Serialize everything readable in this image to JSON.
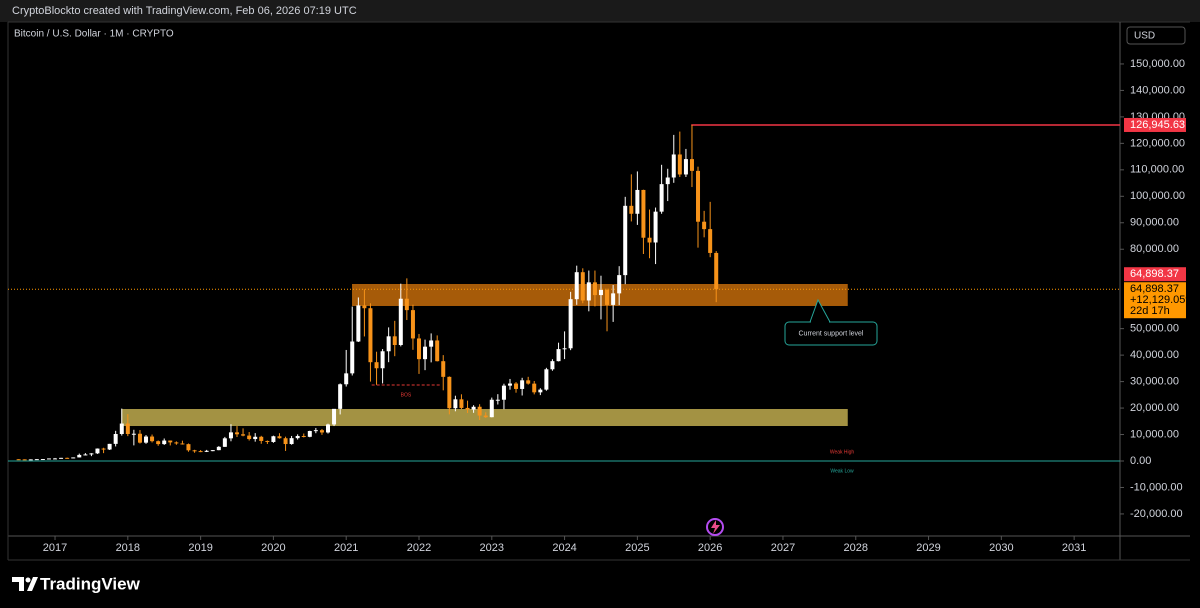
{
  "header": {
    "credit": "CryptoBlockto created with TradingView.com, Feb 06, 2026 07:19 UTC",
    "brand": "TradingView"
  },
  "chart_data": {
    "type": "candlestick",
    "title": "Bitcoin / U.S. Dollar · 1M · CRYPTO",
    "currency": "USD",
    "up_color": "#ffffff",
    "down_color": "#f7931a",
    "x": [
      2016.5,
      2016.583,
      2016.667,
      2016.75,
      2016.833,
      2016.917,
      2017.0,
      2017.083,
      2017.167,
      2017.25,
      2017.333,
      2017.417,
      2017.5,
      2017.583,
      2017.667,
      2017.75,
      2017.833,
      2017.917,
      2018.0,
      2018.083,
      2018.167,
      2018.25,
      2018.333,
      2018.417,
      2018.5,
      2018.583,
      2018.667,
      2018.75,
      2018.833,
      2018.917,
      2019.0,
      2019.083,
      2019.167,
      2019.25,
      2019.333,
      2019.417,
      2019.5,
      2019.583,
      2019.667,
      2019.75,
      2019.833,
      2019.917,
      2020.0,
      2020.083,
      2020.167,
      2020.25,
      2020.333,
      2020.417,
      2020.5,
      2020.583,
      2020.667,
      2020.75,
      2020.833,
      2020.917,
      2021.0,
      2021.083,
      2021.167,
      2021.25,
      2021.333,
      2021.417,
      2021.5,
      2021.583,
      2021.667,
      2021.75,
      2021.833,
      2021.917,
      2022.0,
      2022.083,
      2022.167,
      2022.25,
      2022.333,
      2022.417,
      2022.5,
      2022.583,
      2022.667,
      2022.75,
      2022.833,
      2022.917,
      2023.0,
      2023.083,
      2023.167,
      2023.25,
      2023.333,
      2023.417,
      2023.5,
      2023.583,
      2023.667,
      2023.75,
      2023.833,
      2023.917,
      2024.0,
      2024.083,
      2024.167,
      2024.25,
      2024.333,
      2024.417,
      2024.5,
      2024.583,
      2024.667,
      2024.75,
      2024.833,
      2024.917,
      2025.0,
      2025.083,
      2025.167,
      2025.25,
      2025.333,
      2025.417,
      2025.5,
      2025.583,
      2025.667,
      2025.75,
      2025.833,
      2025.917,
      2026.0,
      2026.083
    ],
    "open": [
      673,
      624,
      575,
      609,
      700,
      745,
      964,
      970,
      1190,
      1080,
      1350,
      2300,
      2480,
      2880,
      4700,
      4340,
      6470,
      10200,
      14150,
      10200,
      10300,
      6930,
      9240,
      7490,
      6390,
      7730,
      7030,
      6630,
      6370,
      4040,
      3740,
      3460,
      3850,
      4100,
      5350,
      8570,
      10820,
      10090,
      9600,
      8290,
      9150,
      7570,
      7190,
      9350,
      8600,
      6410,
      8630,
      9450,
      9140,
      11330,
      11650,
      10780,
      13800,
      19700,
      28990,
      33110,
      45140,
      58790,
      57720,
      37330,
      35040,
      41460,
      47100,
      43820,
      61300,
      57000,
      46300,
      38480,
      43190,
      45540,
      37710,
      31790,
      19940,
      23300,
      20050,
      19430,
      20490,
      17170,
      16550,
      23140,
      23150,
      28470,
      29270,
      27220,
      30480,
      29230,
      25940,
      26970,
      34650,
      37720,
      42280,
      42580,
      61130,
      71330,
      60640,
      67490,
      62680,
      64620,
      58970,
      63330,
      70220,
      96400,
      93400,
      102400,
      84350,
      82550,
      94200,
      104600,
      107100,
      115800,
      108250,
      114050,
      109600,
      90400,
      87600,
      78600
    ],
    "high": [
      704,
      626,
      628,
      720,
      755,
      980,
      1150,
      1200,
      1290,
      1350,
      2790,
      3000,
      2950,
      4750,
      5000,
      6470,
      11400,
      19800,
      17700,
      11800,
      11700,
      9800,
      10000,
      7760,
      8500,
      7760,
      7410,
      7680,
      6620,
      4240,
      4140,
      4200,
      4150,
      5620,
      9100,
      13900,
      13200,
      12330,
      10940,
      10540,
      9510,
      7750,
      9580,
      10500,
      9190,
      9460,
      10070,
      10380,
      11450,
      12480,
      12100,
      14100,
      19500,
      29300,
      41950,
      58350,
      61790,
      64850,
      59580,
      41290,
      42300,
      50480,
      52950,
      67000,
      69000,
      59050,
      47990,
      45850,
      48200,
      47450,
      40000,
      31950,
      24670,
      25200,
      22800,
      21080,
      21450,
      18390,
      23960,
      25250,
      29200,
      31000,
      29820,
      31430,
      31800,
      30230,
      27500,
      35200,
      38450,
      44700,
      48970,
      63900,
      73800,
      72800,
      71950,
      71950,
      70000,
      65100,
      66500,
      73600,
      99800,
      108300,
      109400,
      102500,
      95000,
      95750,
      111900,
      110400,
      123200,
      124450,
      117900,
      126945.63,
      111200,
      94500,
      97900,
      79300
    ],
    "low": [
      605,
      530,
      570,
      605,
      680,
      740,
      750,
      920,
      890,
      1060,
      1340,
      2200,
      1840,
      2670,
      2970,
      4150,
      5500,
      9600,
      9400,
      5900,
      6600,
      6500,
      7000,
      5750,
      6070,
      5880,
      6130,
      6200,
      3500,
      3120,
      3350,
      3390,
      3720,
      4070,
      5330,
      7450,
      9060,
      9330,
      7730,
      7300,
      6510,
      6430,
      6870,
      8450,
      3800,
      6160,
      8100,
      8900,
      8970,
      10500,
      9880,
      10370,
      13200,
      17600,
      28130,
      32300,
      44950,
      47050,
      30000,
      28800,
      29300,
      37330,
      39600,
      43300,
      53250,
      42000,
      32900,
      34320,
      37260,
      37600,
      26700,
      17620,
      18780,
      19600,
      18150,
      18200,
      15480,
      16260,
      16500,
      21350,
      19550,
      26950,
      25800,
      24750,
      28850,
      25170,
      24900,
      26550,
      34100,
      37630,
      38500,
      41880,
      59000,
      59600,
      56550,
      58400,
      53500,
      49000,
      52550,
      58900,
      66800,
      90500,
      89200,
      78200,
      76600,
      74400,
      93400,
      98200,
      105100,
      107300,
      107300,
      103500,
      80600,
      84500,
      77000,
      60000
    ],
    "close": [
      624,
      575,
      609,
      700,
      745,
      964,
      970,
      1190,
      1080,
      1350,
      2300,
      2480,
      2880,
      4700,
      4340,
      6470,
      10200,
      14150,
      10200,
      10300,
      6930,
      9240,
      7490,
      6390,
      7730,
      7030,
      6630,
      6370,
      4040,
      3740,
      3460,
      3850,
      4100,
      5350,
      8570,
      10820,
      10090,
      9600,
      8290,
      9150,
      7570,
      7190,
      9350,
      8600,
      6410,
      8630,
      9450,
      9140,
      11330,
      11650,
      10780,
      13800,
      19700,
      28990,
      33110,
      45140,
      58790,
      57720,
      37330,
      35040,
      41460,
      47100,
      43820,
      61300,
      57000,
      46300,
      38480,
      43190,
      45540,
      37710,
      31790,
      19940,
      23300,
      20050,
      19430,
      20490,
      17170,
      16550,
      23140,
      23150,
      28470,
      29270,
      27220,
      30480,
      29230,
      25940,
      26970,
      34650,
      37720,
      42280,
      42580,
      61130,
      71330,
      60640,
      67490,
      62680,
      64620,
      58970,
      63330,
      70220,
      96400,
      93400,
      102400,
      84350,
      82550,
      94200,
      104600,
      107100,
      115800,
      108250,
      114050,
      109600,
      90400,
      87600,
      78600,
      64898.37
    ],
    "xlim": [
      2016.354,
      2031.63
    ],
    "ylim": [
      -28334,
      165848
    ],
    "xticks": [
      2017,
      2018,
      2019,
      2020,
      2021,
      2022,
      2023,
      2024,
      2025,
      2026,
      2027,
      2028,
      2029,
      2030,
      2031
    ],
    "yticks": [
      {
        "value": 150000,
        "label": "150,000.00"
      },
      {
        "value": 140000,
        "label": "140,000.00"
      },
      {
        "value": 130000,
        "label": "130,000.00"
      },
      {
        "value": 120000,
        "label": "120,000.00"
      },
      {
        "value": 110000,
        "label": "110,000.00"
      },
      {
        "value": 100000,
        "label": "100,000.00"
      },
      {
        "value": 90000,
        "label": "90,000.00"
      },
      {
        "value": 80000,
        "label": "80,000.00"
      },
      {
        "value": 50000,
        "label": "50,000.00"
      },
      {
        "value": 40000,
        "label": "40,000.00"
      },
      {
        "value": 30000,
        "label": "30,000.00"
      },
      {
        "value": 20000,
        "label": "20,000.00"
      },
      {
        "value": 10000,
        "label": "10,000.00"
      },
      {
        "value": 0,
        "label": "0.00"
      },
      {
        "value": -10000,
        "label": "-10,000.00"
      },
      {
        "value": -20000,
        "label": "-20,000.00"
      }
    ],
    "high_line": {
      "value": 126945.63,
      "label": "126,945.63",
      "start": 2025.74,
      "color": "#f23645"
    },
    "current": {
      "value": 64898.37,
      "label": "64,898.37",
      "change": "+12,129.05%",
      "countdown": "22d 17h",
      "color": "#ff9800",
      "prev_label": "64,898.37",
      "prev_color": "#f23645"
    },
    "zones": [
      {
        "x": [
          2021.08,
          2027.89
        ],
        "y": [
          58560,
          66870
        ],
        "color": "#b8650a"
      },
      {
        "x": [
          2017.91,
          2027.89
        ],
        "y": [
          13220,
          19645
        ],
        "color": "#b5a24a"
      }
    ],
    "bos": {
      "label": "BOS",
      "value": 28710,
      "x": [
        2021.35,
        2022.29
      ],
      "color": "#e53935"
    },
    "callout": "Current support level",
    "weak_high": "Weak High",
    "weak_low": "Weak Low",
    "weak_low_level": 0
  }
}
